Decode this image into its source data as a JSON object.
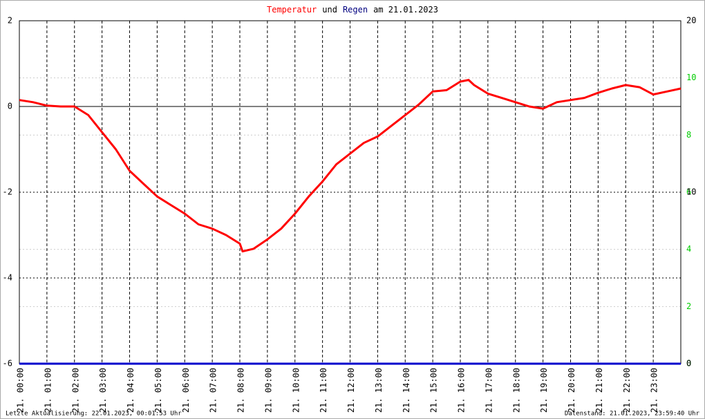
{
  "chart_data": {
    "type": "line",
    "title_parts": [
      "Temperatur",
      "und",
      "Regen",
      "am 21.01.2023"
    ],
    "title_colors": [
      "#ff0000",
      "#000000",
      "#000080",
      "#000000"
    ],
    "footer_left": "Letzte Aktualisierung: 22.01.2023, 00:01:53 Uhr",
    "footer_right": "Datenstand: 21.01.2023, 23:59:40 Uhr",
    "xlim": [
      0,
      24
    ],
    "xticks": [
      {
        "value": 0,
        "label": "21. 00:00"
      },
      {
        "value": 1,
        "label": "21. 01:00"
      },
      {
        "value": 2,
        "label": "21. 02:00"
      },
      {
        "value": 3,
        "label": "21. 03:00"
      },
      {
        "value": 4,
        "label": "21. 04:00"
      },
      {
        "value": 5,
        "label": "21. 05:00"
      },
      {
        "value": 6,
        "label": "21. 06:00"
      },
      {
        "value": 7,
        "label": "21. 07:00"
      },
      {
        "value": 8,
        "label": "21. 08:00"
      },
      {
        "value": 9,
        "label": "21. 09:00"
      },
      {
        "value": 10,
        "label": "21. 10:00"
      },
      {
        "value": 11,
        "label": "21. 11:00"
      },
      {
        "value": 12,
        "label": "21. 12:00"
      },
      {
        "value": 13,
        "label": "21. 13:00"
      },
      {
        "value": 14,
        "label": "21. 14:00"
      },
      {
        "value": 15,
        "label": "21. 15:00"
      },
      {
        "value": 16,
        "label": "21. 16:00"
      },
      {
        "value": 17,
        "label": "21. 17:00"
      },
      {
        "value": 18,
        "label": "21. 18:00"
      },
      {
        "value": 19,
        "label": "21. 19:00"
      },
      {
        "value": 20,
        "label": "21. 20:00"
      },
      {
        "value": 21,
        "label": "21. 21:00"
      },
      {
        "value": 22,
        "label": "21. 22:00"
      },
      {
        "value": 23,
        "label": "21. 23:00"
      }
    ],
    "ylim": [
      -6,
      2
    ],
    "yticks": [
      -6,
      -4,
      -2,
      0,
      2
    ],
    "y2lim": [
      0,
      20
    ],
    "y2ticks": [
      0,
      10,
      20
    ],
    "y3lim": [
      0,
      12
    ],
    "y3ticks": [
      0,
      2,
      4,
      6,
      8,
      10
    ],
    "y3color": "#00cc00",
    "grid": true,
    "series": [
      {
        "name": "Temperatur",
        "color": "#ff0000",
        "x": [
          0,
          0.5,
          1,
          1.5,
          2,
          2.5,
          3,
          3.5,
          4,
          4.5,
          5,
          5.5,
          6,
          6.5,
          7,
          7.5,
          8,
          8.1,
          8.5,
          9,
          9.5,
          10,
          10.5,
          11,
          11.5,
          12,
          12.5,
          13,
          13.5,
          14,
          14.5,
          15,
          15.5,
          16,
          16.3,
          16.5,
          17,
          17.5,
          18,
          18.5,
          19,
          19.5,
          20,
          20.5,
          21,
          21.5,
          22,
          22.5,
          23,
          23.5,
          24
        ],
        "values": [
          0.15,
          0.1,
          0.02,
          0,
          0,
          -0.2,
          -0.6,
          -1.0,
          -1.5,
          -1.8,
          -2.1,
          -2.3,
          -2.5,
          -2.75,
          -2.85,
          -3.0,
          -3.2,
          -3.38,
          -3.32,
          -3.1,
          -2.85,
          -2.5,
          -2.1,
          -1.75,
          -1.35,
          -1.1,
          -0.85,
          -0.7,
          -0.45,
          -0.2,
          0.05,
          0.35,
          0.38,
          0.58,
          0.62,
          0.5,
          0.3,
          0.2,
          0.1,
          0,
          -0.05,
          0.1,
          0.15,
          0.2,
          0.32,
          0.42,
          0.5,
          0.45,
          0.28,
          0.35,
          0.42
        ]
      },
      {
        "name": "Regen",
        "color": "#0000cc",
        "axis": "y2",
        "x": [
          0,
          24
        ],
        "values": [
          0,
          0
        ]
      }
    ]
  }
}
